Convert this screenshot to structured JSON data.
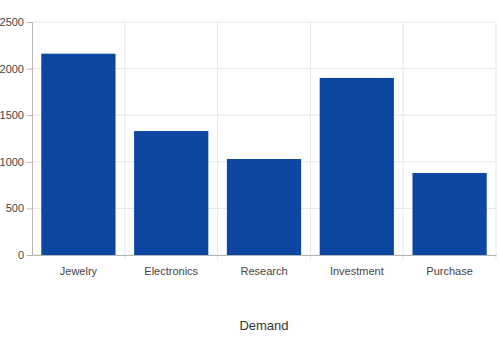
{
  "chart_data": {
    "type": "bar",
    "x_label": "Demand",
    "categories": [
      "Jewelry",
      "Electronics",
      "Research",
      "Investment",
      "Purchase"
    ],
    "values": [
      2160,
      1330,
      1030,
      1900,
      880
    ],
    "color": "#0d47a1",
    "ylim": [
      0,
      2500
    ],
    "yticks": [
      0,
      500,
      1000,
      1500,
      2000,
      2500
    ],
    "grid": true
  }
}
